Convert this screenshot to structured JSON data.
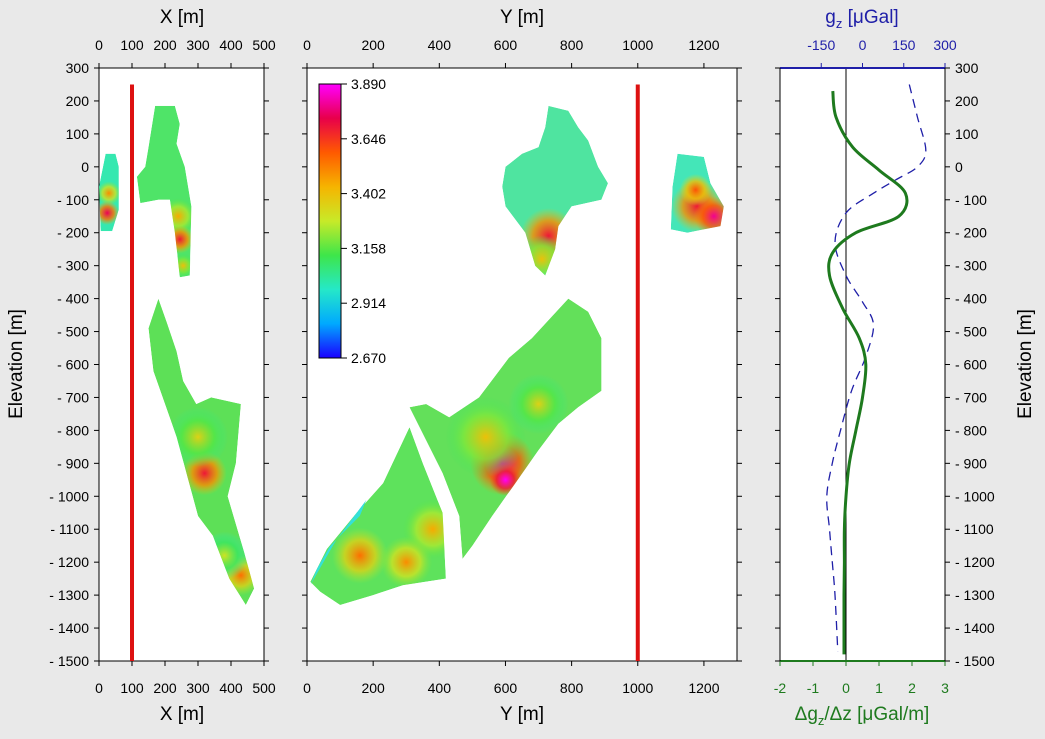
{
  "chart_data": [
    {
      "type": "heatmap",
      "panel": "xz-section",
      "xlabel_top": "X [m]",
      "xlabel_bottom": "X [m]",
      "ylabel": "Elevation [m]",
      "xlim": [
        0,
        500
      ],
      "ylim": [
        -1500,
        300
      ],
      "xticks": [
        0,
        100,
        200,
        300,
        400,
        500
      ],
      "xtick_labels": [
        "0",
        "100",
        "200",
        "300",
        "400",
        "500"
      ],
      "yticks": [
        300,
        200,
        100,
        0,
        -100,
        -200,
        -300,
        -400,
        -500,
        -600,
        -700,
        -800,
        -900,
        -1000,
        -1100,
        -1200,
        -1300,
        -1400,
        -1500
      ],
      "ytick_labels": [
        "300",
        "200",
        "100",
        "0",
        "- 100",
        "- 200",
        "- 300",
        "- 400",
        "- 500",
        "- 600",
        "- 700",
        "- 800",
        "- 900",
        "- 1000",
        "- 1100",
        "- 1200",
        "- 1300",
        "- 1400",
        "- 1500"
      ],
      "borehole": {
        "x": 100,
        "z_top": 250,
        "z_bottom": -1500,
        "color": "#dd1111"
      },
      "bodies": [
        {
          "points": [
            [
              20,
              40
            ],
            [
              50,
              40
            ],
            [
              60,
              0
            ],
            [
              60,
              -130
            ],
            [
              40,
              -195
            ],
            [
              5,
              -195
            ],
            [
              0,
              -60
            ]
          ],
          "fill": "#35e8b0",
          "spots": [
            {
              "x": 30,
              "z": -80,
              "v": 3.5,
              "r": 12
            },
            {
              "x": 25,
              "z": -140,
              "v": 3.75,
              "r": 12
            }
          ]
        },
        {
          "points": [
            [
              170,
              185
            ],
            [
              230,
              185
            ],
            [
              245,
              130
            ],
            [
              235,
              70
            ],
            [
              260,
              0
            ],
            [
              280,
              -120
            ],
            [
              275,
              -330
            ],
            [
              245,
              -335
            ],
            [
              230,
              -200
            ],
            [
              215,
              -100
            ],
            [
              180,
              -100
            ],
            [
              125,
              -110
            ],
            [
              115,
              -30
            ],
            [
              140,
              0
            ],
            [
              150,
              60
            ]
          ],
          "fill": "#4fe468",
          "spots": [
            {
              "x": 240,
              "z": -150,
              "v": 3.45,
              "r": 18
            },
            {
              "x": 245,
              "z": -220,
              "v": 3.7,
              "r": 14
            },
            {
              "x": 255,
              "z": -300,
              "v": 3.4,
              "r": 12
            }
          ]
        },
        {
          "points": [
            [
              180,
              -400
            ],
            [
              205,
              -470
            ],
            [
              235,
              -560
            ],
            [
              255,
              -650
            ],
            [
              295,
              -720
            ],
            [
              340,
              -700
            ],
            [
              430,
              -720
            ],
            [
              415,
              -900
            ],
            [
              390,
              -1000
            ],
            [
              440,
              -1170
            ],
            [
              470,
              -1280
            ],
            [
              445,
              -1330
            ],
            [
              395,
              -1250
            ],
            [
              345,
              -1120
            ],
            [
              300,
              -1060
            ],
            [
              235,
              -820
            ],
            [
              165,
              -620
            ],
            [
              150,
              -490
            ]
          ],
          "fill": "#5de057",
          "spots": [
            {
              "x": 320,
              "z": -930,
              "v": 3.7,
              "r": 22
            },
            {
              "x": 300,
              "z": -820,
              "v": 3.35,
              "r": 30
            },
            {
              "x": 430,
              "z": -1240,
              "v": 3.55,
              "r": 20
            },
            {
              "x": 380,
              "z": -1180,
              "v": 3.3,
              "r": 24
            }
          ]
        }
      ]
    },
    {
      "type": "heatmap",
      "panel": "yz-section",
      "xlabel_top": "Y [m]",
      "xlabel_bottom": "Y [m]",
      "xlim": [
        0,
        1300
      ],
      "ylim": [
        -1500,
        300
      ],
      "xticks": [
        0,
        200,
        400,
        600,
        800,
        1000,
        1200
      ],
      "xtick_labels": [
        "0",
        "200",
        "400",
        "600",
        "800",
        "1000",
        "1200"
      ],
      "borehole": {
        "y": 1000,
        "z_top": 250,
        "z_bottom": -1500,
        "color": "#dd1111"
      },
      "colorbar": {
        "vmin": 2.67,
        "vmax": 3.89,
        "tick_values": [
          3.89,
          3.646,
          3.402,
          3.158,
          2.914,
          2.67
        ],
        "tick_labels": [
          "3.890",
          "3.646",
          "3.402",
          "3.158",
          "2.914",
          "2.670"
        ],
        "stops": [
          "#1a00ff",
          "#00a9ff",
          "#25e8c8",
          "#3ee64a",
          "#c8ea28",
          "#f6b400",
          "#ff5a00",
          "#e8004a",
          "#ff00ff"
        ]
      },
      "bodies": [
        {
          "points": [
            [
              730,
              185
            ],
            [
              790,
              170
            ],
            [
              820,
              120
            ],
            [
              850,
              80
            ],
            [
              880,
              0
            ],
            [
              910,
              -50
            ],
            [
              890,
              -100
            ],
            [
              800,
              -120
            ],
            [
              760,
              -180
            ],
            [
              750,
              -250
            ],
            [
              720,
              -330
            ],
            [
              690,
              -300
            ],
            [
              660,
              -200
            ],
            [
              600,
              -120
            ],
            [
              590,
              -60
            ],
            [
              600,
              0
            ],
            [
              650,
              40
            ],
            [
              700,
              60
            ],
            [
              720,
              120
            ]
          ],
          "fill": "#4fe4a0",
          "spots": [
            {
              "x": 730,
              "z": -210,
              "v": 3.7,
              "r": 28
            },
            {
              "x": 710,
              "z": -280,
              "v": 3.4,
              "r": 24
            }
          ]
        },
        {
          "points": [
            [
              1120,
              40
            ],
            [
              1200,
              30
            ],
            [
              1220,
              -50
            ],
            [
              1260,
              -120
            ],
            [
              1250,
              -180
            ],
            [
              1200,
              -190
            ],
            [
              1150,
              -200
            ],
            [
              1100,
              -190
            ],
            [
              1105,
              -60
            ]
          ],
          "fill": "#44e6b8",
          "spots": [
            {
              "x": 1180,
              "z": -120,
              "v": 3.7,
              "r": 26
            },
            {
              "x": 1230,
              "z": -150,
              "v": 3.8,
              "r": 20
            },
            {
              "x": 1175,
              "z": -70,
              "v": 3.6,
              "r": 16
            }
          ]
        },
        {
          "points": [
            [
              790,
              -400
            ],
            [
              850,
              -440
            ],
            [
              890,
              -520
            ],
            [
              890,
              -680
            ],
            [
              820,
              -730
            ],
            [
              760,
              -780
            ],
            [
              700,
              -860
            ],
            [
              630,
              -960
            ],
            [
              560,
              -1060
            ],
            [
              500,
              -1150
            ],
            [
              470,
              -1190
            ],
            [
              460,
              -1060
            ],
            [
              410,
              -930
            ],
            [
              310,
              -730
            ],
            [
              360,
              -720
            ],
            [
              430,
              -760
            ],
            [
              520,
              -700
            ],
            [
              610,
              -580
            ],
            [
              680,
              -520
            ]
          ],
          "fill": "#63e05a",
          "spots": [
            {
              "x": 590,
              "z": -900,
              "v": 3.8,
              "r": 32
            },
            {
              "x": 600,
              "z": -950,
              "v": 3.9,
              "r": 16
            },
            {
              "x": 540,
              "z": -820,
              "v": 3.4,
              "r": 40
            },
            {
              "x": 700,
              "z": -720,
              "v": 3.35,
              "r": 30
            }
          ]
        },
        {
          "points": [
            [
              310,
              -790
            ],
            [
              350,
              -900
            ],
            [
              410,
              -1050
            ],
            [
              420,
              -1250
            ],
            [
              290,
              -1270
            ],
            [
              200,
              -1300
            ],
            [
              100,
              -1330
            ],
            [
              40,
              -1290
            ],
            [
              10,
              -1260
            ],
            [
              60,
              -1160
            ],
            [
              150,
              -1050
            ],
            [
              230,
              -960
            ]
          ],
          "fill": "#5ee25c",
          "spots": [
            {
              "x": 160,
              "z": -1180,
              "v": 3.55,
              "r": 28
            },
            {
              "x": 380,
              "z": -1100,
              "v": 3.45,
              "r": 30
            },
            {
              "x": 300,
              "z": -1200,
              "v": 3.5,
              "r": 26
            }
          ]
        },
        {
          "points": [
            [
              10,
              -1270
            ],
            [
              90,
              -1130
            ],
            [
              180,
              -1010
            ],
            [
              160,
              -1060
            ],
            [
              70,
              -1150
            ],
            [
              30,
              -1220
            ]
          ],
          "fill": "#35e0d8",
          "spots": []
        }
      ]
    },
    {
      "type": "line",
      "panel": "gravity-profile",
      "xlabel_top": "gz [μGal]",
      "xlabel_top_main": "g",
      "xlabel_top_sub": "z",
      "xlabel_top_rest": " [μGal]",
      "xlabel_bottom": "Δgz/Δz [μGal/m]",
      "xlabel_bottom_pre": "Δg",
      "xlabel_bottom_sub": "z",
      "xlabel_bottom_rest": "/Δz [μGal/m]",
      "ylabel_right": "Elevation [m]",
      "xlim_top": [
        -300,
        300
      ],
      "xticks_top": [
        -150,
        0,
        150,
        300
      ],
      "xtick_labels_top": [
        "-150",
        "0",
        "150",
        "300"
      ],
      "xlim_bottom": [
        -2,
        3
      ],
      "xticks_bottom": [
        -2,
        -1,
        0,
        1,
        2,
        3
      ],
      "xtick_labels_bottom": [
        "-2",
        "-1",
        "0",
        "1",
        "2",
        "3"
      ],
      "ylim": [
        -1500,
        300
      ],
      "top_axis_color": "#1f1fa8",
      "bottom_axis_color": "#1e7a1e",
      "series": [
        {
          "axis": "top",
          "style": "dashed",
          "color": "#1f1fa8",
          "x": [
            170,
            200,
            230,
            200,
            120,
            40,
            -60,
            -100,
            -60,
            0,
            40,
            10,
            -40,
            -80,
            -110,
            -130,
            -120,
            -110,
            -100,
            -90
          ],
          "z": [
            250,
            150,
            50,
            0,
            -40,
            -80,
            -140,
            -230,
            -330,
            -410,
            -480,
            -580,
            -680,
            -800,
            -900,
            -1000,
            -1100,
            -1200,
            -1300,
            -1470
          ]
        },
        {
          "axis": "bottom",
          "style": "solid",
          "color": "#1e7a1e",
          "x": [
            -0.4,
            -0.3,
            0.2,
            1.0,
            1.8,
            1.6,
            0.3,
            -0.4,
            -0.5,
            -0.1,
            0.4,
            0.6,
            0.5,
            0.3,
            0.1,
            0.0,
            -0.05,
            -0.05,
            -0.06,
            -0.06
          ],
          "z": [
            230,
            150,
            60,
            -10,
            -80,
            -150,
            -200,
            -260,
            -330,
            -430,
            -520,
            -600,
            -700,
            -800,
            -900,
            -1000,
            -1100,
            -1200,
            -1300,
            -1480
          ]
        }
      ]
    }
  ]
}
